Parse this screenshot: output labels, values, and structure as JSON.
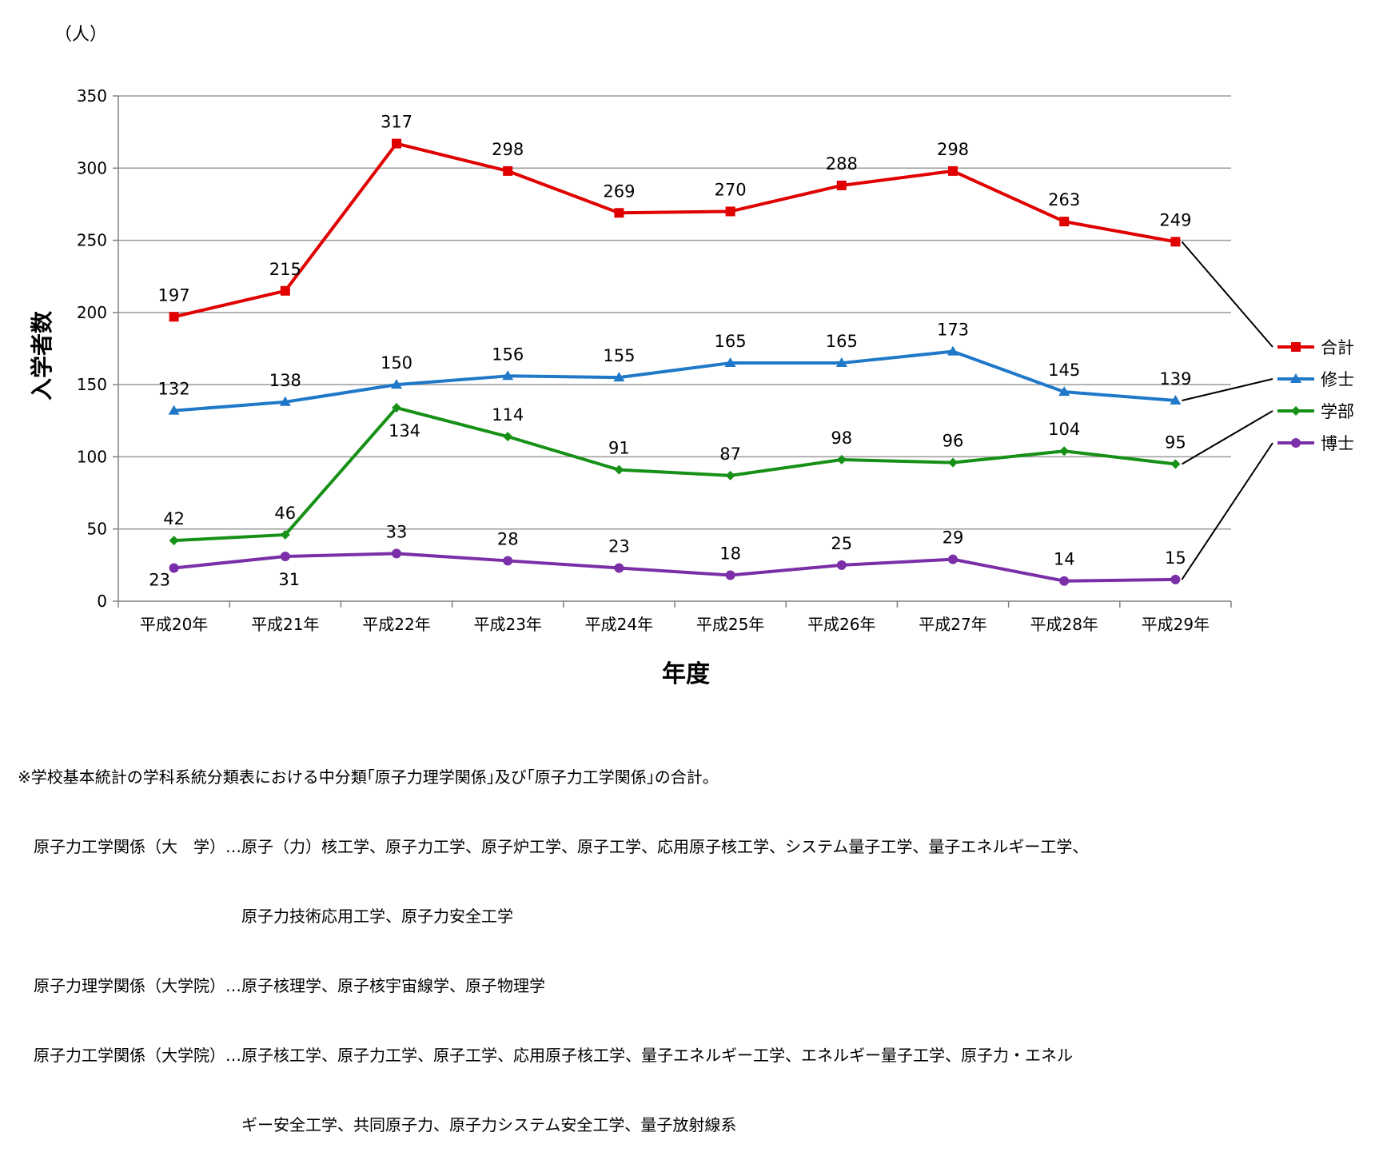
{
  "chart_data": {
    "type": "line",
    "unit_label": "（人）",
    "ylabel": "入学者数",
    "xlabel": "年度",
    "ylim": [
      0,
      350
    ],
    "yticks": [
      0,
      50,
      100,
      150,
      200,
      250,
      300,
      350
    ],
    "grid": true,
    "legend_position": "right",
    "categories": [
      "平成20年",
      "平成21年",
      "平成22年",
      "平成23年",
      "平成24年",
      "平成25年",
      "平成26年",
      "平成27年",
      "平成28年",
      "平成29年"
    ],
    "series": [
      {
        "name": "合計",
        "color": "#e00000",
        "marker": "square",
        "values": [
          197,
          215,
          317,
          298,
          269,
          270,
          288,
          298,
          263,
          249
        ]
      },
      {
        "name": "修士",
        "color": "#1f78c8",
        "marker": "triangle",
        "values": [
          132,
          138,
          150,
          156,
          155,
          165,
          165,
          173,
          145,
          139
        ]
      },
      {
        "name": "学部",
        "color": "#169016",
        "marker": "diamond",
        "values": [
          42,
          46,
          134,
          114,
          91,
          87,
          98,
          96,
          104,
          95
        ]
      },
      {
        "name": "博士",
        "color": "#7a2fa8",
        "marker": "circle",
        "values": [
          23,
          31,
          33,
          28,
          23,
          18,
          25,
          29,
          14,
          15
        ]
      }
    ]
  },
  "notes": [
    "※学校基本統計の学科系統分類表における中分類｢原子力理学関係｣及び｢原子力工学関係｣の合計。",
    "　原子力工学関係（大　学）…原子（力）核工学、原子力工学、原子炉工学、原子工学、応用原子核工学、システム量子工学、量子エネルギー工学、",
    "　　　　　　　　　　　　　　原子力技術応用工学、原子力安全工学",
    "　原子力理学関係（大学院）…原子核理学、原子核宇宙線学、原子物理学",
    "　原子力工学関係（大学院）…原子核工学、原子力工学、原子工学、応用原子核工学、量子エネルギー工学、エネルギー量子工学、原子力・エネル",
    "　　　　　　　　　　　　　　ギー安全工学、共同原子力、原子力システム安全工学、量子放射線系"
  ]
}
